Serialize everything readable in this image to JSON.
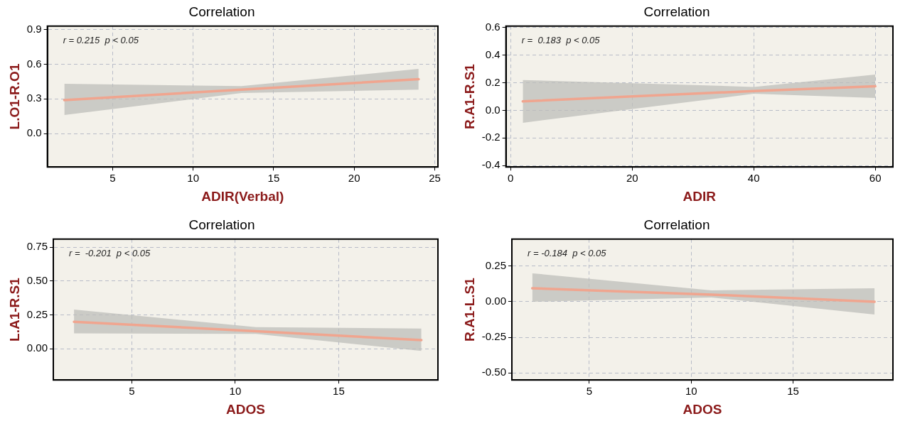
{
  "chart_data": [
    {
      "type": "line",
      "title": "Correlation",
      "xlabel": "ADIR(Verbal)",
      "ylabel": "L.O1-R.O1",
      "annotations": [
        "r = 0.215  p < 0.05"
      ],
      "x": [
        2,
        13,
        24
      ],
      "xlim": [
        0.95,
        25.2
      ],
      "xticks": [
        5,
        10,
        15,
        20,
        25
      ],
      "ylim": [
        -0.29,
        0.93
      ],
      "yticks": [
        {
          "value": 0,
          "label": "0.0"
        },
        0.3,
        0.6,
        0.9
      ],
      "grid": true,
      "marker": "none",
      "series": [
        {
          "color": "#f0a58f",
          "values": [
            0.29,
            0.38,
            0.47
          ],
          "lower": [
            0.16,
            0.35,
            0.38
          ],
          "upper": [
            0.43,
            0.41,
            0.56
          ]
        }
      ]
    },
    {
      "type": "line",
      "title": "Correlation",
      "xlabel": "ADIR",
      "ylabel": "R.A1-R.S1",
      "annotations": [
        "r =  0.183  p < 0.05"
      ],
      "x": [
        2,
        40,
        60
      ],
      "xlim": [
        -0.77,
        62.9
      ],
      "xticks": [
        0,
        20,
        40,
        60
      ],
      "ylim": [
        -0.41,
        0.61
      ],
      "yticks": [
        -0.4,
        -0.2,
        {
          "value": 0,
          "label": "0.0"
        },
        0.2,
        0.4,
        0.6
      ],
      "grid": true,
      "marker": "none",
      "series": [
        {
          "color": "#f0a58f",
          "values": [
            0.065,
            0.14,
            0.175
          ],
          "lower": [
            -0.09,
            0.12,
            0.09
          ],
          "upper": [
            0.22,
            0.17,
            0.26
          ]
        }
      ]
    },
    {
      "type": "line",
      "title": "Correlation",
      "xlabel": "ADOS",
      "ylabel": "L.A1-R.S1",
      "annotations": [
        "r =  -0.201  p < 0.05"
      ],
      "x": [
        2.2,
        11,
        19
      ],
      "xlim": [
        1.2,
        19.8
      ],
      "xticks": [
        5,
        10,
        15
      ],
      "ylim": [
        -0.23,
        0.81
      ],
      "yticks": [
        {
          "value": 0,
          "label": "0.00"
        },
        {
          "value": 0.25,
          "label": "0.25"
        },
        {
          "value": 0.5,
          "label": "0.50"
        },
        {
          "value": 0.75,
          "label": "0.75"
        }
      ],
      "grid": true,
      "marker": "none",
      "series": [
        {
          "color": "#f0a58f",
          "values": [
            0.2,
            0.13,
            0.065
          ],
          "lower": [
            0.115,
            0.11,
            -0.015
          ],
          "upper": [
            0.29,
            0.16,
            0.15
          ]
        }
      ]
    },
    {
      "type": "line",
      "title": "Correlation",
      "xlabel": "ADOS",
      "ylabel": "R.A1-L.S1",
      "annotations": [
        "r = -0.184  p < 0.05"
      ],
      "x": [
        2.2,
        11,
        19
      ],
      "xlim": [
        1.2,
        19.9
      ],
      "xticks": [
        5,
        10,
        15
      ],
      "ylim": [
        -0.55,
        0.44
      ],
      "yticks": [
        {
          "value": -0.5,
          "label": "-0.50"
        },
        {
          "value": -0.25,
          "label": "-0.25"
        },
        {
          "value": 0,
          "label": "0.00"
        },
        {
          "value": 0.25,
          "label": "0.25"
        }
      ],
      "grid": true,
      "marker": "none",
      "series": [
        {
          "color": "#f0a58f",
          "values": [
            0.095,
            0.05,
            0.0
          ],
          "lower": [
            0.0,
            0.03,
            -0.09
          ],
          "upper": [
            0.2,
            0.08,
            0.095
          ]
        }
      ]
    }
  ]
}
